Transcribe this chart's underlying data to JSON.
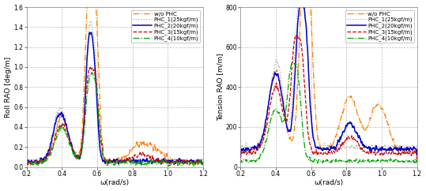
{
  "left_ylabel": "Roll RAO [deg/m]",
  "right_ylabel": "Tension RAO [m/m]",
  "xlabel": "ω(rad/s)",
  "left_ylim": [
    0,
    1.6
  ],
  "right_ylim": [
    0,
    800
  ],
  "xlim": [
    0.2,
    1.2
  ],
  "left_yticks": [
    0,
    0.2,
    0.4,
    0.6,
    0.8,
    1.0,
    1.2,
    1.4,
    1.6
  ],
  "right_yticks": [
    0,
    200,
    400,
    600,
    800
  ],
  "xticks": [
    0.2,
    0.4,
    0.6,
    0.8,
    1.0,
    1.2
  ],
  "legend_labels": [
    "w/o PHC",
    "PHC_1(25kgf/m)",
    "PHC_2(20kgf/m)",
    "PHC_3(15kgf/m)",
    "PHC_4(10kgf/m)"
  ],
  "colors": [
    "#FF8000",
    "#AAAAAA",
    "#0000CC",
    "#CC0000",
    "#00AA00"
  ],
  "linestyles_roll": [
    "-.",
    ":",
    "-",
    "--",
    "-."
  ],
  "linestyles_tension": [
    "-.",
    ":",
    "-",
    "--",
    "-."
  ],
  "linewidths": [
    0.9,
    0.9,
    1.1,
    0.9,
    0.9
  ],
  "grid_color": "#BBBBBB",
  "grid_linestyle": "--",
  "background_color": "#FFFFFF",
  "tick_fontsize": 5.5,
  "label_fontsize": 6.5,
  "legend_fontsize": 5.0
}
